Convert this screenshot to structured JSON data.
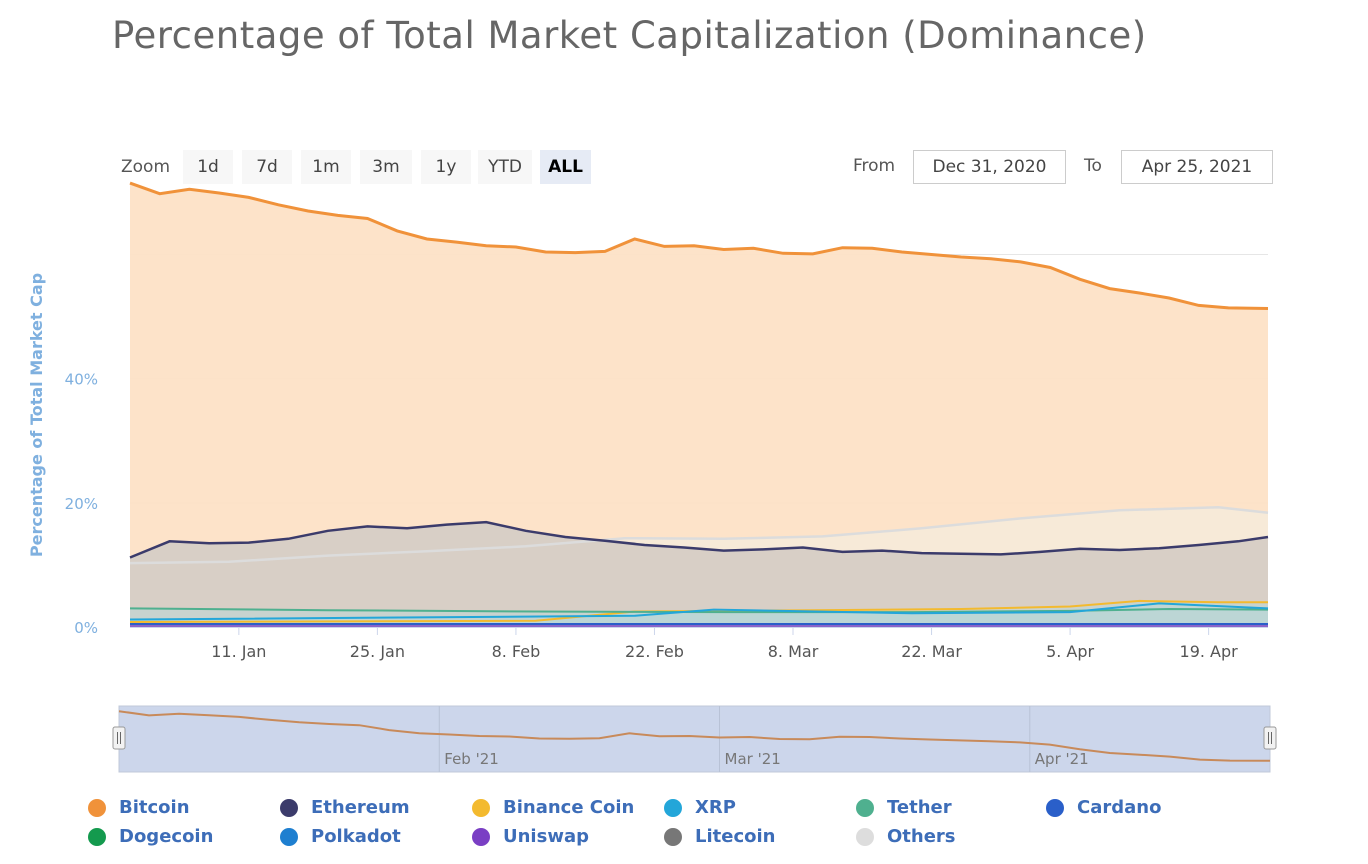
{
  "title": "Percentage of Total Market Capitalization (Dominance)",
  "rangeSelector": {
    "zoom_label": "Zoom",
    "buttons": [
      "1d",
      "7d",
      "1m",
      "3m",
      "1y",
      "YTD",
      "ALL"
    ],
    "active": "ALL",
    "from_label": "From",
    "from_value": "Dec 31, 2020",
    "to_label": "To",
    "to_value": "Apr 25, 2021"
  },
  "colors": {
    "Bitcoin": "#f0923a",
    "Ethereum": "#3b3b6b",
    "Binance Coin": "#f3ba2f",
    "XRP": "#23a6d9",
    "Tether": "#4fb08f",
    "Cardano": "#2a5fc9",
    "Dogecoin": "#149a4e",
    "Polkadot": "#1e7fd0",
    "Uniswap": "#7a3fc4",
    "Litecoin": "#777777",
    "Others": "#dddddd"
  },
  "chart_data": {
    "type": "area",
    "x_start": "2020-12-31",
    "x_end": "2021-04-25",
    "ylabel": "Percentage of Total Market Cap",
    "ylim": [
      0,
      72
    ],
    "yticks": [
      "0%",
      "20%",
      "40%"
    ],
    "xticks": [
      "11. Jan",
      "25. Jan",
      "8. Feb",
      "22. Feb",
      "8. Mar",
      "22. Mar",
      "5. Apr",
      "19. Apr"
    ],
    "navigator_labels": [
      "Feb '21",
      "Mar '21",
      "Apr '21"
    ],
    "legend": [
      "Bitcoin",
      "Ethereum",
      "Binance Coin",
      "XRP",
      "Tether",
      "Cardano",
      "Dogecoin",
      "Polkadot",
      "Uniswap",
      "Litecoin",
      "Others"
    ],
    "series": [
      {
        "name": "Bitcoin",
        "dates": [
          "2020-12-31",
          "2021-01-03",
          "2021-01-06",
          "2021-01-09",
          "2021-01-12",
          "2021-01-15",
          "2021-01-18",
          "2021-01-21",
          "2021-01-24",
          "2021-01-27",
          "2021-01-30",
          "2021-02-02",
          "2021-02-05",
          "2021-02-08",
          "2021-02-11",
          "2021-02-14",
          "2021-02-17",
          "2021-02-20",
          "2021-02-23",
          "2021-02-26",
          "2021-03-01",
          "2021-03-04",
          "2021-03-07",
          "2021-03-10",
          "2021-03-13",
          "2021-03-16",
          "2021-03-19",
          "2021-03-22",
          "2021-03-25",
          "2021-03-28",
          "2021-03-31",
          "2021-04-03",
          "2021-04-06",
          "2021-04-09",
          "2021-04-12",
          "2021-04-15",
          "2021-04-18",
          "2021-04-21",
          "2021-04-25"
        ],
        "values": [
          71.5,
          69.8,
          70.5,
          69.9,
          69.2,
          68.0,
          67.0,
          66.3,
          65.8,
          63.8,
          62.5,
          62.0,
          61.4,
          61.2,
          60.4,
          60.3,
          60.5,
          62.5,
          61.3,
          61.4,
          60.8,
          61.0,
          60.2,
          60.1,
          61.1,
          61.0,
          60.4,
          60.0,
          59.6,
          59.3,
          58.8,
          57.9,
          56.0,
          54.5,
          53.8,
          53.0,
          51.8,
          51.4,
          51.3
        ]
      },
      {
        "name": "Ethereum",
        "dates": [
          "2020-12-31",
          "2021-01-04",
          "2021-01-08",
          "2021-01-12",
          "2021-01-16",
          "2021-01-20",
          "2021-01-24",
          "2021-01-28",
          "2021-02-01",
          "2021-02-05",
          "2021-02-09",
          "2021-02-13",
          "2021-02-17",
          "2021-02-21",
          "2021-02-25",
          "2021-03-01",
          "2021-03-05",
          "2021-03-09",
          "2021-03-13",
          "2021-03-17",
          "2021-03-21",
          "2021-03-25",
          "2021-03-29",
          "2021-04-02",
          "2021-04-06",
          "2021-04-10",
          "2021-04-14",
          "2021-04-18",
          "2021-04-22",
          "2021-04-25"
        ],
        "values": [
          11.2,
          13.8,
          13.5,
          13.6,
          14.2,
          15.5,
          16.2,
          15.9,
          16.5,
          16.9,
          15.5,
          14.5,
          13.9,
          13.2,
          12.8,
          12.3,
          12.5,
          12.8,
          12.1,
          12.3,
          11.9,
          11.8,
          11.7,
          12.1,
          12.6,
          12.4,
          12.7,
          13.2,
          13.8,
          14.5
        ]
      },
      {
        "name": "Tether",
        "dates": [
          "2020-12-31",
          "2021-01-20",
          "2021-02-10",
          "2021-03-01",
          "2021-03-20",
          "2021-04-05",
          "2021-04-15",
          "2021-04-25"
        ],
        "values": [
          3.0,
          2.7,
          2.5,
          2.4,
          2.4,
          2.6,
          2.9,
          2.8
        ]
      },
      {
        "name": "Binance Coin",
        "dates": [
          "2020-12-31",
          "2021-02-10",
          "2021-02-20",
          "2021-03-10",
          "2021-03-25",
          "2021-04-05",
          "2021-04-12",
          "2021-04-20",
          "2021-04-25"
        ],
        "values": [
          0.8,
          1.0,
          2.5,
          2.7,
          2.9,
          3.3,
          4.2,
          4.0,
          4.0
        ]
      },
      {
        "name": "XRP",
        "dates": [
          "2020-12-31",
          "2021-02-20",
          "2021-02-28",
          "2021-03-20",
          "2021-04-05",
          "2021-04-14",
          "2021-04-25"
        ],
        "values": [
          1.2,
          1.8,
          2.8,
          2.2,
          2.4,
          3.8,
          3.0
        ]
      },
      {
        "name": "Others",
        "dates": [
          "2020-12-31",
          "2021-01-10",
          "2021-01-20",
          "2021-01-30",
          "2021-02-09",
          "2021-02-19",
          "2021-03-01",
          "2021-03-11",
          "2021-03-21",
          "2021-03-31",
          "2021-04-10",
          "2021-04-20",
          "2021-04-25"
        ],
        "values": [
          10.3,
          10.5,
          11.5,
          12.2,
          13.0,
          14.3,
          14.2,
          14.6,
          15.9,
          17.5,
          18.8,
          19.3,
          18.4
        ]
      }
    ]
  }
}
